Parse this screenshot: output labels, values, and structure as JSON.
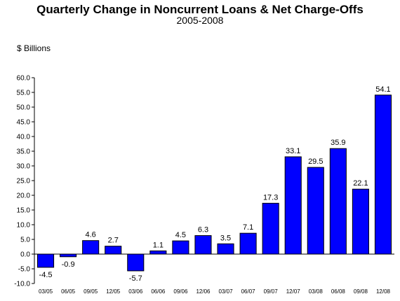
{
  "chart_data": {
    "type": "bar",
    "title": "Quarterly Change in Noncurrent Loans & Net Charge-Offs",
    "subtitle": "2005-2008",
    "ylabel": "$ Billions",
    "xlabel": "",
    "categories": [
      "03/05",
      "06/05",
      "09/05",
      "12/05",
      "03/06",
      "06/06",
      "09/06",
      "12/06",
      "03/07",
      "06/07",
      "09/07",
      "12/07",
      "03/08",
      "06/08",
      "09/08",
      "12/08"
    ],
    "values": [
      -4.5,
      -0.9,
      4.6,
      2.7,
      -5.7,
      1.1,
      4.5,
      6.3,
      3.5,
      7.1,
      17.3,
      33.1,
      29.5,
      35.9,
      22.1,
      54.1
    ],
    "data_labels": [
      "-4.5",
      "-0.9",
      "4.6",
      "2.7",
      "-5.7",
      "1.1",
      "4.5",
      "6.3",
      "3.5",
      "7.1",
      "17.3",
      "33.1",
      "29.5",
      "35.9",
      "22.1",
      "54.1"
    ],
    "ylim": [
      -10,
      60
    ],
    "yticks": [
      "-10.0",
      "-5.0",
      "0.0",
      "5.0",
      "10.0",
      "15.0",
      "20.0",
      "25.0",
      "30.0",
      "35.0",
      "40.0",
      "45.0",
      "50.0",
      "55.0",
      "60.0"
    ],
    "ytick_values": [
      -10,
      -5,
      0,
      5,
      10,
      15,
      20,
      25,
      30,
      35,
      40,
      45,
      50,
      55,
      60
    ],
    "bar_color": "#0000FF",
    "grid": false,
    "legend": "none"
  }
}
